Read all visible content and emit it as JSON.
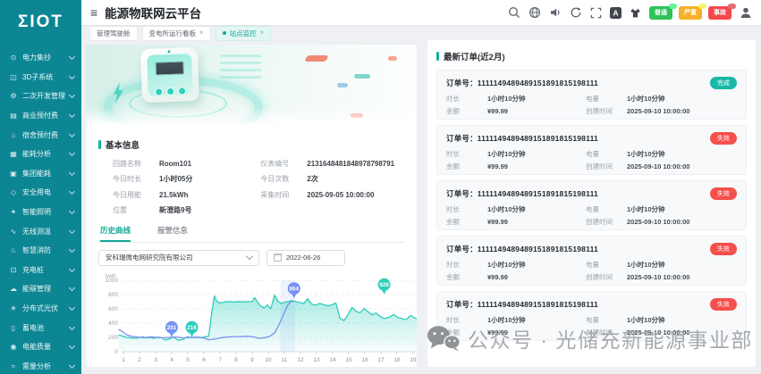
{
  "app": {
    "logo": "ΣIOT",
    "title": "能源物联网云平台"
  },
  "header": {
    "icon_names": [
      "search-icon",
      "language-icon",
      "audio-icon",
      "refresh-icon",
      "fullscreen-icon",
      "font-size-icon",
      "theme-icon",
      "avatar-icon"
    ],
    "alarm_badges": [
      {
        "label": "普通",
        "color": "#2fc25b"
      },
      {
        "label": "严重",
        "color": "#f6b028"
      },
      {
        "label": "事故",
        "color": "#f5484d"
      }
    ]
  },
  "tabs": [
    {
      "label": "管理驾驶舱",
      "active": false,
      "closable": false
    },
    {
      "label": "变电所运行看板",
      "active": false,
      "closable": true
    },
    {
      "label": "站点监控",
      "active": true,
      "closable": true
    }
  ],
  "sidebar": {
    "items": [
      {
        "icon": "⊙",
        "label": "电力集抄"
      },
      {
        "icon": "◫",
        "label": "3D子系统"
      },
      {
        "icon": "⚙",
        "label": "二次开发管理"
      },
      {
        "icon": "▤",
        "label": "商业预付费"
      },
      {
        "icon": "⌂",
        "label": "宿舍预付费"
      },
      {
        "icon": "▦",
        "label": "能耗分析"
      },
      {
        "icon": "▣",
        "label": "集团能耗"
      },
      {
        "icon": "◇",
        "label": "安全用电"
      },
      {
        "icon": "✦",
        "label": "智能照明"
      },
      {
        "icon": "∿",
        "label": "无线测温"
      },
      {
        "icon": "♨",
        "label": "智慧消防"
      },
      {
        "icon": "⊡",
        "label": "充电桩"
      },
      {
        "icon": "☁",
        "label": "能碳管理"
      },
      {
        "icon": "☀",
        "label": "分布式光伏"
      },
      {
        "icon": "▯",
        "label": "蓄电池"
      },
      {
        "icon": "◉",
        "label": "电能质量"
      },
      {
        "icon": "≈",
        "label": "需量分析"
      }
    ]
  },
  "basic_info": {
    "title": "基本信息",
    "fields_left": [
      {
        "label": "回路名称",
        "value": "Room101"
      },
      {
        "label": "今日时长",
        "value": "1小时05分"
      },
      {
        "label": "今日用能",
        "value": "21.5kWh"
      },
      {
        "label": "位置",
        "value": "新澄路9号"
      }
    ],
    "fields_right": [
      {
        "label": "仪表编号",
        "value": "2131648481848978798791"
      },
      {
        "label": "今日次数",
        "value": "2次"
      },
      {
        "label": "采集时间",
        "value": "2025-09-05 10:00:00"
      }
    ]
  },
  "curve_section": {
    "tabs": [
      {
        "label": "历史曲线",
        "active": true
      },
      {
        "label": "报警信息",
        "active": false
      }
    ],
    "company_select": "安科瑞微电网研究院有限公司",
    "date": "2022-06-26"
  },
  "chart_data": {
    "type": "line",
    "unit": "kwh",
    "x_ticks": [
      1,
      2,
      3,
      4,
      5,
      6,
      7,
      8,
      9,
      10,
      11,
      12,
      13,
      14,
      15,
      16,
      17,
      18,
      19
    ],
    "y_ticks": [
      0,
      200,
      400,
      600,
      800,
      1000
    ],
    "ylim": [
      0,
      1000
    ],
    "grid": true,
    "highlight_band": {
      "x1": 10.75,
      "x2": 11.65
    },
    "series": [
      {
        "name": "green-area",
        "color": "#2fcdbb",
        "area": true,
        "points": [
          [
            0.7,
            235
          ],
          [
            1,
            215
          ],
          [
            1.2,
            200
          ],
          [
            1.5,
            193
          ],
          [
            1.8,
            188
          ],
          [
            2,
            200
          ],
          [
            2.2,
            207
          ],
          [
            2.5,
            193
          ],
          [
            2.7,
            200
          ],
          [
            2.9,
            186
          ],
          [
            3.1,
            204
          ],
          [
            3.4,
            196
          ],
          [
            3.6,
            162
          ],
          [
            3.9,
            183
          ],
          [
            4.1,
            206
          ],
          [
            4.4,
            160
          ],
          [
            4.7,
            172
          ],
          [
            5,
            212
          ],
          [
            5.2,
            196
          ],
          [
            5.5,
            201
          ],
          [
            5.8,
            194
          ],
          [
            6,
            206
          ],
          [
            6.3,
            218
          ],
          [
            6.5,
            570
          ],
          [
            6.65,
            780
          ],
          [
            6.8,
            706
          ],
          [
            7,
            682
          ],
          [
            7.3,
            697
          ],
          [
            7.6,
            701
          ],
          [
            7.9,
            696
          ],
          [
            8.2,
            702
          ],
          [
            8.5,
            697
          ],
          [
            8.8,
            701
          ],
          [
            9,
            705
          ],
          [
            9.15,
            757
          ],
          [
            9.35,
            688
          ],
          [
            9.55,
            638
          ],
          [
            9.75,
            613
          ],
          [
            9.95,
            657
          ],
          [
            10.15,
            600
          ],
          [
            10.4,
            792
          ],
          [
            10.6,
            707
          ],
          [
            10.8,
            676
          ],
          [
            11,
            691
          ],
          [
            11.25,
            703
          ],
          [
            11.5,
            716
          ],
          [
            11.75,
            699
          ],
          [
            12,
            688
          ],
          [
            12.2,
            673
          ],
          [
            12.45,
            741
          ],
          [
            12.7,
            664
          ],
          [
            12.95,
            653
          ],
          [
            13.2,
            676
          ],
          [
            13.5,
            654
          ],
          [
            13.75,
            644
          ],
          [
            14,
            661
          ],
          [
            14.2,
            682
          ],
          [
            14.45,
            470
          ],
          [
            14.7,
            436
          ],
          [
            14.95,
            517
          ],
          [
            15.2,
            621
          ],
          [
            15.45,
            566
          ],
          [
            15.7,
            544
          ],
          [
            15.95,
            606
          ],
          [
            16.2,
            561
          ],
          [
            16.45,
            514
          ],
          [
            16.7,
            541
          ],
          [
            16.95,
            494
          ],
          [
            17.2,
            464
          ],
          [
            17.5,
            481
          ],
          [
            17.8,
            521
          ],
          [
            18.05,
            479
          ],
          [
            18.3,
            464
          ],
          [
            18.55,
            449
          ],
          [
            18.85,
            506
          ],
          [
            19.1,
            472
          ],
          [
            19.35,
            452
          ],
          [
            19.5,
            438
          ]
        ]
      },
      {
        "name": "blue-line",
        "color": "#7792f3",
        "area": false,
        "points": [
          [
            0.7,
            312
          ],
          [
            0.9,
            288
          ],
          [
            1.2,
            236
          ],
          [
            1.5,
            214
          ],
          [
            1.9,
            204
          ],
          [
            2.3,
            194
          ],
          [
            2.7,
            209
          ],
          [
            3.1,
            199
          ],
          [
            3.5,
            194
          ],
          [
            3.9,
            201
          ],
          [
            4.3,
            206
          ],
          [
            4.7,
            194
          ],
          [
            5.1,
            199
          ],
          [
            5.5,
            206
          ],
          [
            5.9,
            199
          ],
          [
            6.3,
            168
          ],
          [
            6.7,
            176
          ],
          [
            7.1,
            196
          ],
          [
            7.5,
            206
          ],
          [
            7.9,
            211
          ],
          [
            8.3,
            213
          ],
          [
            8.7,
            216
          ],
          [
            9.1,
            206
          ],
          [
            9.45,
            186
          ],
          [
            9.8,
            196
          ],
          [
            10.1,
            216
          ],
          [
            10.4,
            266
          ],
          [
            10.7,
            392
          ],
          [
            11,
            548
          ],
          [
            11.2,
            648
          ],
          [
            11.4,
            701
          ],
          [
            11.6,
            712
          ]
        ]
      }
    ],
    "markers": [
      {
        "label": "201",
        "series": "blue",
        "x": 4.0,
        "y": 340
      },
      {
        "label": "216",
        "series": "green",
        "x": 5.25,
        "y": 340
      },
      {
        "label": "864",
        "series": "blue",
        "x": 11.6,
        "y": 885
      },
      {
        "label": "928",
        "series": "green",
        "x": 17.2,
        "y": 940
      }
    ]
  },
  "orders": {
    "title": "最新订单(近2月)",
    "order_no_label": "订单号：",
    "items": [
      {
        "order_no": "1111149489489151891815198111",
        "status": "完成",
        "status_type": "success",
        "duration_label": "时长",
        "duration": "1小时10分钟",
        "energy_label": "电量",
        "energy": "1小时10分钟",
        "amount_label": "金额",
        "amount": "¥99.99",
        "created_label": "创建时间",
        "created": "2025-09-10 10:00:00"
      },
      {
        "order_no": "1111149489489151891815198111",
        "status": "失效",
        "status_type": "danger",
        "duration_label": "时长",
        "duration": "1小时10分钟",
        "energy_label": "电量",
        "energy": "1小时10分钟",
        "amount_label": "金额",
        "amount": "¥99.99",
        "created_label": "创建时间",
        "created": "2025-09-10 10:00:00"
      },
      {
        "order_no": "1111149489489151891815198111",
        "status": "失效",
        "status_type": "danger",
        "duration_label": "时长",
        "duration": "1小时10分钟",
        "energy_label": "电量",
        "energy": "1小时10分钟",
        "amount_label": "金额",
        "amount": "¥99.99",
        "created_label": "创建时间",
        "created": "2025-09-10 10:00:00"
      },
      {
        "order_no": "1111149489489151891815198111",
        "status": "失效",
        "status_type": "danger",
        "duration_label": "时长",
        "duration": "1小时10分钟",
        "energy_label": "电量",
        "energy": "1小时10分钟",
        "amount_label": "金额",
        "amount": "¥99.99",
        "created_label": "创建时间",
        "created": "2025-09-10 10:00:00"
      },
      {
        "order_no": "1111149489489151891815198111",
        "status": "失效",
        "status_type": "danger",
        "duration_label": "时长",
        "duration": "1小时10分钟",
        "energy_label": "电量",
        "energy": "1小时10分钟",
        "amount_label": "金额",
        "amount": "¥99.99",
        "created_label": "创建时间",
        "created": "2025-09-10 10:00:00"
      }
    ]
  },
  "watermark": {
    "text": "公众号 · 光储充新能源事业部"
  }
}
